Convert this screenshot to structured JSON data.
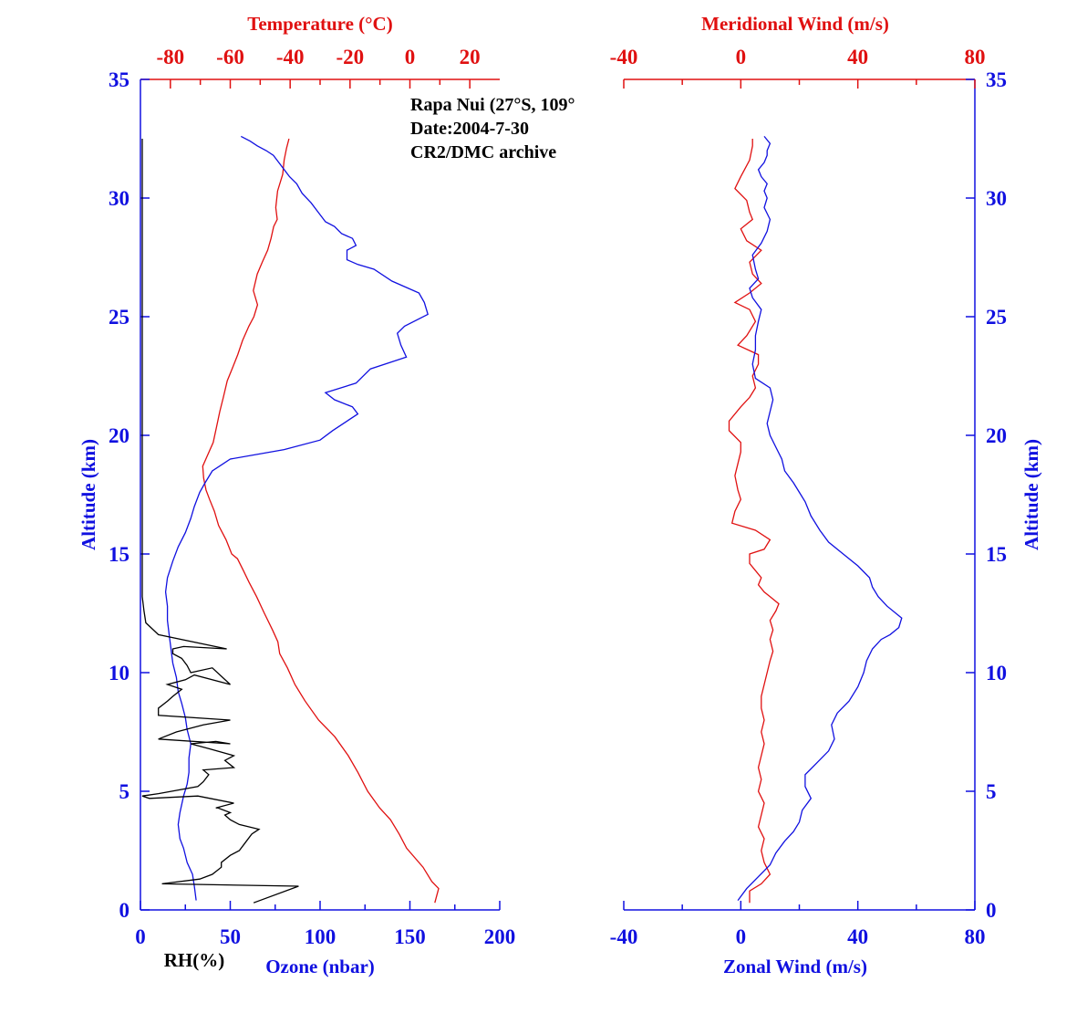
{
  "colors": {
    "blue": "#1010e0",
    "red": "#e01010",
    "black": "#000000"
  },
  "info": [
    "Rapa Nui (27°S, 109°",
    "Date:2004-7-30",
    "CR2/DMC archive"
  ],
  "chart_data": [
    {
      "type": "line",
      "panel": "left",
      "ylabel": "Altitude (km)",
      "ylim": [
        0,
        35
      ],
      "yticks": [
        "0",
        "5",
        "10",
        "15",
        "20",
        "25",
        "30",
        "35"
      ],
      "bottom_axis": {
        "label": "Ozone (nbar)",
        "lim": [
          0,
          200
        ],
        "ticks": [
          "0",
          "50",
          "100",
          "150",
          "200"
        ]
      },
      "top_axis": {
        "label": "Temperature (°C)",
        "lim": [
          -90,
          30
        ],
        "ticks": [
          "-80",
          "-60",
          "-40",
          "-20",
          "0",
          "20"
        ]
      },
      "extra_label": "RH(%)",
      "series": [
        {
          "name": "Temperature (°C)",
          "axis": "top",
          "color": "#e01010",
          "x": [
            8.3,
            9.6,
            7.3,
            4.4,
            -1.1,
            -3.6,
            -6.5,
            -10.1,
            -14.1,
            -17.4,
            -20.6,
            -25.1,
            -30.5,
            -35.0,
            -38.4,
            -40.9,
            -43.5,
            -44.1,
            -45.9,
            -48.6,
            -51.2,
            -53.7,
            -55.6,
            -57.6,
            -59.5,
            -61.4,
            -63.9,
            -65.3,
            -66.9,
            -68.1,
            -68.9,
            -69.2,
            -67.8,
            -65.7,
            -64.5,
            -63.5,
            -62.3,
            -61.0,
            -59.4,
            -57.5,
            -55.9,
            -53.8,
            -52.1,
            -50.9,
            -52.3,
            -51.0,
            -49.3,
            -47.5,
            -46.4,
            -45.5,
            -44.3,
            -44.8,
            -44.2,
            -42.5,
            -42.0,
            -41.2,
            -40.4
          ],
          "y": [
            0.3,
            0.9,
            1.2,
            1.8,
            2.6,
            3.2,
            3.8,
            4.3,
            5.0,
            5.8,
            6.5,
            7.3,
            8.0,
            8.8,
            9.5,
            10.2,
            10.8,
            11.3,
            11.8,
            12.5,
            13.2,
            13.8,
            14.3,
            14.8,
            15.0,
            15.6,
            16.2,
            16.8,
            17.3,
            17.7,
            18.2,
            18.7,
            19.1,
            19.7,
            20.4,
            21.0,
            21.6,
            22.3,
            22.8,
            23.4,
            24.0,
            24.6,
            25.0,
            25.5,
            26.1,
            26.8,
            27.3,
            27.8,
            28.3,
            28.8,
            29.1,
            29.6,
            30.3,
            31.0,
            31.6,
            32.1,
            32.5
          ]
        },
        {
          "name": "Ozone (nbar)",
          "axis": "bottom",
          "color": "#1010e0",
          "x": [
            31,
            30,
            29,
            26,
            24,
            22,
            21,
            22,
            24,
            26,
            27,
            27,
            28,
            26,
            25,
            23,
            21,
            20,
            18,
            17,
            16,
            15,
            15,
            14,
            15,
            18,
            21,
            25,
            28,
            30,
            33,
            36,
            40,
            50,
            80,
            100,
            107,
            115,
            121,
            118,
            108,
            103,
            120,
            128,
            148,
            145,
            143,
            147,
            160,
            158,
            155,
            140,
            130,
            121,
            115,
            115,
            120,
            118,
            112,
            108,
            103,
            99,
            95,
            90,
            87,
            83,
            80,
            77,
            74,
            70,
            65,
            61,
            56
          ],
          "y": [
            0.4,
            1.0,
            1.5,
            2.0,
            2.6,
            3.0,
            3.6,
            4.1,
            4.8,
            5.3,
            5.8,
            6.4,
            7.0,
            7.6,
            8.1,
            8.7,
            9.2,
            9.8,
            10.4,
            11.0,
            11.6,
            12.2,
            12.8,
            13.4,
            14.0,
            14.7,
            15.3,
            15.9,
            16.5,
            17.0,
            17.6,
            18.0,
            18.5,
            19.0,
            19.4,
            19.8,
            20.2,
            20.6,
            20.9,
            21.2,
            21.5,
            21.8,
            22.2,
            22.8,
            23.3,
            23.8,
            24.3,
            24.6,
            25.1,
            25.6,
            26.0,
            26.5,
            27.0,
            27.2,
            27.4,
            27.8,
            28.0,
            28.3,
            28.5,
            28.8,
            29.0,
            29.4,
            29.8,
            30.2,
            30.6,
            30.9,
            31.2,
            31.5,
            31.8,
            32.0,
            32.2,
            32.4,
            32.6
          ]
        },
        {
          "name": "RH(%)",
          "axis": "bottom",
          "color": "#000000",
          "x": [
            63,
            88,
            12,
            33,
            40,
            45,
            45,
            50,
            55,
            58,
            62,
            66,
            55,
            50,
            47,
            50,
            43,
            42,
            52,
            32,
            5,
            1,
            10,
            32,
            35,
            38,
            35,
            52,
            47,
            52,
            38,
            28,
            42,
            50,
            10,
            20,
            35,
            50,
            10,
            10,
            15,
            18,
            23,
            15,
            25,
            30,
            50,
            40,
            28,
            26,
            23,
            18,
            18,
            24,
            48,
            10,
            3,
            2,
            1,
            1
          ],
          "y": [
            0.3,
            1.0,
            1.1,
            1.3,
            1.5,
            1.8,
            2.0,
            2.3,
            2.5,
            2.8,
            3.2,
            3.4,
            3.6,
            3.8,
            4.0,
            4.1,
            4.3,
            4.3,
            4.5,
            4.8,
            4.7,
            4.8,
            4.9,
            5.2,
            5.4,
            5.7,
            5.9,
            6.0,
            6.3,
            6.5,
            6.8,
            7.0,
            7.1,
            7.0,
            7.2,
            7.5,
            7.8,
            8.0,
            8.2,
            8.5,
            8.8,
            9.0,
            9.3,
            9.5,
            9.7,
            9.9,
            9.5,
            10.2,
            10.0,
            10.3,
            10.6,
            10.8,
            11.0,
            11.1,
            11.0,
            11.6,
            12.1,
            12.6,
            13.2,
            32.5
          ]
        }
      ]
    },
    {
      "type": "line",
      "panel": "right",
      "ylabel": "Altitude (km)",
      "ylim": [
        0,
        35
      ],
      "yticks": [
        "0",
        "5",
        "10",
        "15",
        "20",
        "25",
        "30",
        "35"
      ],
      "bottom_axis": {
        "label": "Zonal Wind (m/s)",
        "lim": [
          -40,
          80
        ],
        "ticks": [
          "-40",
          "0",
          "40",
          "80"
        ]
      },
      "top_axis": {
        "label": "Meridional Wind (m/s)",
        "lim": [
          -40,
          80
        ],
        "ticks": [
          "-40",
          "0",
          "40",
          "80"
        ]
      },
      "series": [
        {
          "name": "Meridional Wind (m/s)",
          "axis": "top",
          "color": "#e01010",
          "x": [
            3,
            3,
            7,
            10,
            8,
            7,
            8,
            6,
            7,
            8,
            6,
            7,
            6,
            7,
            8,
            7,
            8,
            7,
            7,
            8,
            9,
            10,
            11,
            10,
            11,
            10,
            12,
            13,
            10,
            8,
            6,
            7,
            5,
            3,
            3,
            8,
            10,
            5,
            -3,
            -2,
            0,
            -1,
            -2,
            -1,
            0,
            0,
            -4,
            -4,
            0,
            3,
            5,
            4,
            6,
            6,
            -1,
            2,
            5,
            3,
            -2,
            3,
            7,
            4,
            3,
            7,
            2,
            0,
            4,
            3,
            2,
            -2,
            0,
            3,
            4,
            4
          ],
          "y": [
            0.3,
            0.8,
            1.1,
            1.5,
            2.0,
            2.5,
            3.0,
            3.5,
            4.0,
            4.5,
            5.0,
            5.5,
            6.0,
            6.5,
            7.0,
            7.5,
            8.0,
            8.5,
            9.0,
            9.5,
            10.0,
            10.5,
            10.9,
            11.4,
            11.8,
            12.2,
            12.6,
            12.9,
            13.2,
            13.4,
            13.7,
            14.0,
            14.3,
            14.6,
            15.0,
            15.2,
            15.6,
            16.0,
            16.3,
            16.8,
            17.3,
            17.7,
            18.3,
            18.8,
            19.3,
            19.7,
            20.2,
            20.6,
            21.2,
            21.6,
            22.0,
            22.5,
            23.0,
            23.4,
            23.8,
            24.2,
            24.8,
            25.3,
            25.6,
            26.0,
            26.4,
            26.8,
            27.3,
            27.8,
            28.2,
            28.7,
            29.1,
            29.4,
            29.9,
            30.4,
            30.9,
            31.6,
            32.2,
            32.5
          ]
        },
        {
          "name": "Zonal Wind (m/s)",
          "axis": "bottom",
          "color": "#1010e0",
          "x": [
            -1,
            2,
            6,
            10,
            12,
            15,
            18,
            20,
            21,
            24,
            22,
            22,
            26,
            30,
            32,
            31,
            33,
            37,
            40,
            42,
            43,
            45,
            48,
            51,
            54,
            55,
            50,
            47,
            45,
            44,
            40,
            35,
            30,
            27,
            24,
            22,
            20,
            18,
            15,
            14,
            12,
            10,
            9,
            10,
            11,
            10,
            5,
            4,
            5,
            5,
            6,
            7,
            4,
            3,
            6,
            5,
            4,
            7,
            9,
            10,
            8,
            9,
            8,
            9,
            7,
            6,
            8,
            9,
            9,
            10,
            8
          ],
          "y": [
            0.4,
            0.9,
            1.4,
            1.9,
            2.4,
            2.9,
            3.3,
            3.7,
            4.2,
            4.7,
            5.2,
            5.7,
            6.2,
            6.7,
            7.2,
            7.8,
            8.3,
            8.8,
            9.4,
            10.0,
            10.5,
            11.0,
            11.4,
            11.6,
            11.9,
            12.3,
            12.8,
            13.2,
            13.6,
            14.0,
            14.5,
            15.0,
            15.5,
            16.0,
            16.6,
            17.2,
            17.6,
            18.0,
            18.5,
            19.0,
            19.5,
            20.0,
            20.5,
            21.0,
            21.5,
            22.0,
            22.4,
            23.0,
            23.6,
            24.2,
            24.8,
            25.3,
            25.8,
            26.2,
            26.6,
            27.0,
            27.6,
            28.1,
            28.6,
            29.1,
            29.6,
            30.0,
            30.3,
            30.6,
            30.9,
            31.2,
            31.5,
            31.8,
            32.0,
            32.3,
            32.6
          ]
        }
      ]
    }
  ]
}
